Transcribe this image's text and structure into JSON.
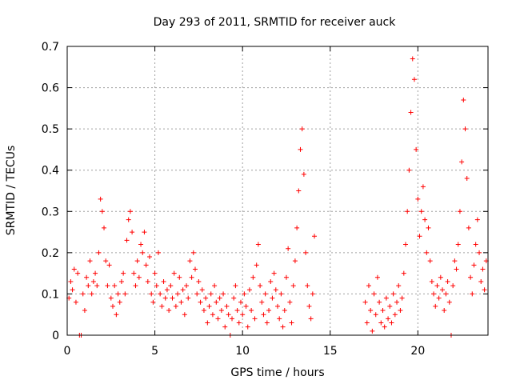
{
  "chart_data": {
    "type": "scatter",
    "title": "Day 293 of 2011, SRMTID for receiver auck",
    "xlabel": "GPS time / hours",
    "ylabel": "SRMTID / TECUs",
    "xlim": [
      0,
      24
    ],
    "ylim": [
      0,
      0.7
    ],
    "x_ticks": [
      0,
      5,
      10,
      15,
      20
    ],
    "x_tick_labels": [
      "0",
      "5",
      "10",
      "15",
      "20"
    ],
    "y_ticks": [
      0,
      0.1,
      0.2,
      0.3,
      0.4,
      0.5,
      0.6,
      0.7
    ],
    "y_tick_labels": [
      "0",
      "0.1",
      "0.2",
      "0.3",
      "0.4",
      "0.5",
      "0.6",
      "0.7"
    ],
    "grid": true,
    "marker": "+",
    "series": [
      {
        "name": "SRMTID",
        "color": "#ff0000",
        "points": [
          [
            0.1,
            0.09
          ],
          [
            0.2,
            0.13
          ],
          [
            0.3,
            0.11
          ],
          [
            0.4,
            0.16
          ],
          [
            0.5,
            0.08
          ],
          [
            0.6,
            0.15
          ],
          [
            0.7,
            0.0
          ],
          [
            0.8,
            0.0
          ],
          [
            0.9,
            0.1
          ],
          [
            1.0,
            0.06
          ],
          [
            1.1,
            0.14
          ],
          [
            1.2,
            0.12
          ],
          [
            1.3,
            0.18
          ],
          [
            1.4,
            0.1
          ],
          [
            1.5,
            0.13
          ],
          [
            1.6,
            0.15
          ],
          [
            1.7,
            0.12
          ],
          [
            1.8,
            0.2
          ],
          [
            1.9,
            0.33
          ],
          [
            2.0,
            0.3
          ],
          [
            2.1,
            0.26
          ],
          [
            2.2,
            0.18
          ],
          [
            2.3,
            0.12
          ],
          [
            2.4,
            0.17
          ],
          [
            2.5,
            0.09
          ],
          [
            2.6,
            0.07
          ],
          [
            2.7,
            0.12
          ],
          [
            2.8,
            0.05
          ],
          [
            2.9,
            0.1
          ],
          [
            3.0,
            0.08
          ],
          [
            3.1,
            0.13
          ],
          [
            3.2,
            0.15
          ],
          [
            3.3,
            0.1
          ],
          [
            3.4,
            0.23
          ],
          [
            3.5,
            0.28
          ],
          [
            3.6,
            0.3
          ],
          [
            3.7,
            0.25
          ],
          [
            3.8,
            0.15
          ],
          [
            3.9,
            0.12
          ],
          [
            4.0,
            0.18
          ],
          [
            4.1,
            0.14
          ],
          [
            4.2,
            0.22
          ],
          [
            4.3,
            0.2
          ],
          [
            4.4,
            0.25
          ],
          [
            4.5,
            0.17
          ],
          [
            4.6,
            0.13
          ],
          [
            4.7,
            0.19
          ],
          [
            4.8,
            0.1
          ],
          [
            4.9,
            0.08
          ],
          [
            5.0,
            0.15
          ],
          [
            5.1,
            0.12
          ],
          [
            5.2,
            0.2
          ],
          [
            5.3,
            0.1
          ],
          [
            5.4,
            0.07
          ],
          [
            5.5,
            0.13
          ],
          [
            5.6,
            0.09
          ],
          [
            5.7,
            0.11
          ],
          [
            5.8,
            0.06
          ],
          [
            5.9,
            0.12
          ],
          [
            6.0,
            0.09
          ],
          [
            6.1,
            0.15
          ],
          [
            6.2,
            0.07
          ],
          [
            6.3,
            0.1
          ],
          [
            6.4,
            0.14
          ],
          [
            6.5,
            0.08
          ],
          [
            6.6,
            0.11
          ],
          [
            6.7,
            0.05
          ],
          [
            6.8,
            0.12
          ],
          [
            6.9,
            0.09
          ],
          [
            7.0,
            0.18
          ],
          [
            7.1,
            0.14
          ],
          [
            7.2,
            0.2
          ],
          [
            7.3,
            0.16
          ],
          [
            7.4,
            0.1
          ],
          [
            7.5,
            0.13
          ],
          [
            7.6,
            0.08
          ],
          [
            7.7,
            0.11
          ],
          [
            7.8,
            0.06
          ],
          [
            7.9,
            0.09
          ],
          [
            8.0,
            0.03
          ],
          [
            8.1,
            0.07
          ],
          [
            8.2,
            0.1
          ],
          [
            8.3,
            0.05
          ],
          [
            8.4,
            0.12
          ],
          [
            8.5,
            0.08
          ],
          [
            8.6,
            0.04
          ],
          [
            8.7,
            0.09
          ],
          [
            8.8,
            0.06
          ],
          [
            8.9,
            0.1
          ],
          [
            9.0,
            0.02
          ],
          [
            9.1,
            0.07
          ],
          [
            9.2,
            0.05
          ],
          [
            9.3,
            0.0
          ],
          [
            9.4,
            0.04
          ],
          [
            9.5,
            0.09
          ],
          [
            9.6,
            0.12
          ],
          [
            9.7,
            0.06
          ],
          [
            9.8,
            0.03
          ],
          [
            9.9,
            0.08
          ],
          [
            10.0,
            0.05
          ],
          [
            10.1,
            0.1
          ],
          [
            10.2,
            0.07
          ],
          [
            10.3,
            0.02
          ],
          [
            10.4,
            0.11
          ],
          [
            10.5,
            0.06
          ],
          [
            10.6,
            0.14
          ],
          [
            10.7,
            0.04
          ],
          [
            10.8,
            0.17
          ],
          [
            10.9,
            0.22
          ],
          [
            11.0,
            0.12
          ],
          [
            11.1,
            0.08
          ],
          [
            11.2,
            0.05
          ],
          [
            11.3,
            0.1
          ],
          [
            11.4,
            0.03
          ],
          [
            11.5,
            0.06
          ],
          [
            11.6,
            0.13
          ],
          [
            11.7,
            0.09
          ],
          [
            11.8,
            0.15
          ],
          [
            11.9,
            0.11
          ],
          [
            12.0,
            0.07
          ],
          [
            12.1,
            0.04
          ],
          [
            12.2,
            0.1
          ],
          [
            12.3,
            0.02
          ],
          [
            12.4,
            0.06
          ],
          [
            12.5,
            0.14
          ],
          [
            12.6,
            0.21
          ],
          [
            12.7,
            0.08
          ],
          [
            12.8,
            0.03
          ],
          [
            12.9,
            0.12
          ],
          [
            13.0,
            0.18
          ],
          [
            13.1,
            0.26
          ],
          [
            13.2,
            0.35
          ],
          [
            13.3,
            0.45
          ],
          [
            13.4,
            0.5
          ],
          [
            13.5,
            0.39
          ],
          [
            13.6,
            0.2
          ],
          [
            13.7,
            0.12
          ],
          [
            13.8,
            0.07
          ],
          [
            13.9,
            0.04
          ],
          [
            14.0,
            0.1
          ],
          [
            14.1,
            0.24
          ],
          [
            17.0,
            0.08
          ],
          [
            17.1,
            0.03
          ],
          [
            17.2,
            0.12
          ],
          [
            17.3,
            0.06
          ],
          [
            17.4,
            0.01
          ],
          [
            17.5,
            0.1
          ],
          [
            17.6,
            0.05
          ],
          [
            17.7,
            0.14
          ],
          [
            17.8,
            0.08
          ],
          [
            17.9,
            0.03
          ],
          [
            18.0,
            0.06
          ],
          [
            18.1,
            0.02
          ],
          [
            18.2,
            0.09
          ],
          [
            18.3,
            0.04
          ],
          [
            18.4,
            0.07
          ],
          [
            18.5,
            0.03
          ],
          [
            18.6,
            0.1
          ],
          [
            18.7,
            0.05
          ],
          [
            18.8,
            0.08
          ],
          [
            18.9,
            0.12
          ],
          [
            19.0,
            0.06
          ],
          [
            19.1,
            0.09
          ],
          [
            19.2,
            0.15
          ],
          [
            19.3,
            0.22
          ],
          [
            19.4,
            0.3
          ],
          [
            19.5,
            0.4
          ],
          [
            19.6,
            0.54
          ],
          [
            19.7,
            0.67
          ],
          [
            19.8,
            0.62
          ],
          [
            19.9,
            0.45
          ],
          [
            20.0,
            0.33
          ],
          [
            20.1,
            0.24
          ],
          [
            20.2,
            0.3
          ],
          [
            20.3,
            0.36
          ],
          [
            20.4,
            0.28
          ],
          [
            20.5,
            0.2
          ],
          [
            20.6,
            0.26
          ],
          [
            20.7,
            0.18
          ],
          [
            20.8,
            0.13
          ],
          [
            20.9,
            0.1
          ],
          [
            21.0,
            0.07
          ],
          [
            21.1,
            0.12
          ],
          [
            21.2,
            0.09
          ],
          [
            21.3,
            0.14
          ],
          [
            21.4,
            0.11
          ],
          [
            21.5,
            0.06
          ],
          [
            21.6,
            0.1
          ],
          [
            21.7,
            0.13
          ],
          [
            21.8,
            0.08
          ],
          [
            21.9,
            0.0
          ],
          [
            22.0,
            0.12
          ],
          [
            22.1,
            0.18
          ],
          [
            22.2,
            0.16
          ],
          [
            22.3,
            0.22
          ],
          [
            22.4,
            0.3
          ],
          [
            22.5,
            0.42
          ],
          [
            22.6,
            0.57
          ],
          [
            22.7,
            0.5
          ],
          [
            22.8,
            0.38
          ],
          [
            22.9,
            0.26
          ],
          [
            23.0,
            0.14
          ],
          [
            23.1,
            0.1
          ],
          [
            23.2,
            0.17
          ],
          [
            23.3,
            0.22
          ],
          [
            23.4,
            0.28
          ],
          [
            23.5,
            0.2
          ],
          [
            23.6,
            0.13
          ],
          [
            23.7,
            0.16
          ],
          [
            23.8,
            0.11
          ],
          [
            23.9,
            0.18
          ]
        ]
      }
    ]
  }
}
